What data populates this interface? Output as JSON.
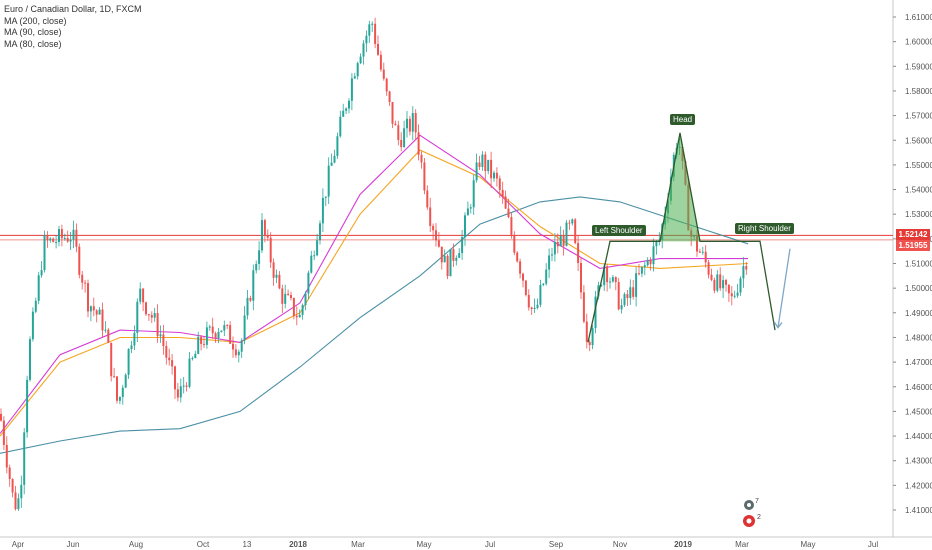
{
  "legend": {
    "symbol": "Euro / Canadian Dollar, 1D, FXCM",
    "ma1": "MA (200, close)",
    "ma2": "MA (90, close)",
    "ma3": "MA (80, close)"
  },
  "price_labels": {
    "upper": "1.52142",
    "lower": "1.51955"
  },
  "annotations": {
    "head": "Head",
    "left_shoulder": "Left Shoulder",
    "right_shoulder": "Right Shoulder"
  },
  "logo_badges": {
    "top": "7",
    "bottom": "2"
  },
  "colors": {
    "up": "#26a69a",
    "down": "#ef5350",
    "ma200": "#4a90a4",
    "ma90": "#f5a623",
    "ma80": "#d63ad6",
    "resistance": "#e53935",
    "pattern": "#2e5a2c",
    "head_fill": "#4caf50",
    "arrow": "#7fa7c9"
  },
  "chart_data": {
    "type": "candlestick",
    "title": "Euro / Canadian Dollar, 1D, FXCM",
    "indicators": [
      "MA (200, close)",
      "MA (90, close)",
      "MA (80, close)"
    ],
    "y_ticks": [
      "1.61000",
      "1.60000",
      "1.59000",
      "1.58000",
      "1.57000",
      "1.56000",
      "1.55000",
      "1.54000",
      "1.53000",
      "1.52000",
      "1.51000",
      "1.50000",
      "1.49000",
      "1.48000",
      "1.47000",
      "1.46000",
      "1.45000",
      "1.44000",
      "1.43000",
      "1.42000",
      "1.41000"
    ],
    "ylim": [
      1.405,
      1.613
    ],
    "x_ticks": [
      "Apr",
      "Jun",
      "Aug",
      "Oct",
      "13",
      "2018",
      "Mar",
      "May",
      "Jul",
      "Sep",
      "Nov",
      "2019",
      "Mar",
      "May",
      "Jul"
    ],
    "close_path": [
      {
        "x": 0,
        "y": 1.449
      },
      {
        "x": 14,
        "y": 1.412
      },
      {
        "x": 20,
        "y": 1.415
      },
      {
        "x": 28,
        "y": 1.472
      },
      {
        "x": 44,
        "y": 1.518
      },
      {
        "x": 60,
        "y": 1.52
      },
      {
        "x": 72,
        "y": 1.522
      },
      {
        "x": 88,
        "y": 1.495
      },
      {
        "x": 104,
        "y": 1.485
      },
      {
        "x": 118,
        "y": 1.452
      },
      {
        "x": 140,
        "y": 1.498
      },
      {
        "x": 160,
        "y": 1.482
      },
      {
        "x": 178,
        "y": 1.455
      },
      {
        "x": 200,
        "y": 1.478
      },
      {
        "x": 220,
        "y": 1.485
      },
      {
        "x": 240,
        "y": 1.475
      },
      {
        "x": 262,
        "y": 1.525
      },
      {
        "x": 280,
        "y": 1.498
      },
      {
        "x": 300,
        "y": 1.488
      },
      {
        "x": 320,
        "y": 1.53
      },
      {
        "x": 340,
        "y": 1.565
      },
      {
        "x": 358,
        "y": 1.595
      },
      {
        "x": 372,
        "y": 1.608
      },
      {
        "x": 384,
        "y": 1.582
      },
      {
        "x": 398,
        "y": 1.56
      },
      {
        "x": 414,
        "y": 1.568
      },
      {
        "x": 430,
        "y": 1.53
      },
      {
        "x": 446,
        "y": 1.508
      },
      {
        "x": 462,
        "y": 1.52
      },
      {
        "x": 480,
        "y": 1.553
      },
      {
        "x": 498,
        "y": 1.542
      },
      {
        "x": 516,
        "y": 1.515
      },
      {
        "x": 534,
        "y": 1.488
      },
      {
        "x": 552,
        "y": 1.515
      },
      {
        "x": 572,
        "y": 1.525
      },
      {
        "x": 588,
        "y": 1.478
      },
      {
        "x": 604,
        "y": 1.51
      },
      {
        "x": 622,
        "y": 1.492
      },
      {
        "x": 640,
        "y": 1.505
      },
      {
        "x": 660,
        "y": 1.52
      },
      {
        "x": 678,
        "y": 1.563
      },
      {
        "x": 690,
        "y": 1.522
      },
      {
        "x": 702,
        "y": 1.513
      },
      {
        "x": 716,
        "y": 1.502
      },
      {
        "x": 732,
        "y": 1.495
      },
      {
        "x": 746,
        "y": 1.512
      }
    ],
    "moving_averages": [
      {
        "name": "MA (200, close)",
        "points": [
          [
            0,
            1.433
          ],
          [
            60,
            1.438
          ],
          [
            120,
            1.442
          ],
          [
            180,
            1.443
          ],
          [
            240,
            1.45
          ],
          [
            300,
            1.468
          ],
          [
            360,
            1.488
          ],
          [
            420,
            1.505
          ],
          [
            480,
            1.526
          ],
          [
            540,
            1.535
          ],
          [
            580,
            1.537
          ],
          [
            620,
            1.535
          ],
          [
            680,
            1.527
          ],
          [
            748,
            1.518
          ]
        ]
      },
      {
        "name": "MA (90, close)",
        "points": [
          [
            0,
            1.44
          ],
          [
            60,
            1.47
          ],
          [
            120,
            1.48
          ],
          [
            180,
            1.48
          ],
          [
            240,
            1.478
          ],
          [
            300,
            1.49
          ],
          [
            360,
            1.53
          ],
          [
            420,
            1.556
          ],
          [
            480,
            1.545
          ],
          [
            540,
            1.525
          ],
          [
            600,
            1.51
          ],
          [
            660,
            1.508
          ],
          [
            748,
            1.51
          ]
        ]
      },
      {
        "name": "MA (80, close)",
        "points": [
          [
            0,
            1.441
          ],
          [
            60,
            1.473
          ],
          [
            120,
            1.483
          ],
          [
            180,
            1.482
          ],
          [
            240,
            1.478
          ],
          [
            300,
            1.494
          ],
          [
            360,
            1.538
          ],
          [
            420,
            1.562
          ],
          [
            480,
            1.546
          ],
          [
            540,
            1.522
          ],
          [
            600,
            1.508
          ],
          [
            660,
            1.512
          ],
          [
            748,
            1.512
          ]
        ]
      }
    ],
    "levels": [
      1.5214,
      1.5196
    ],
    "pattern": {
      "name": "Head and Shoulders",
      "points": [
        [
          588,
          1.478
        ],
        [
          610,
          1.519
        ],
        [
          660,
          1.519
        ],
        [
          680,
          1.563
        ],
        [
          700,
          1.519
        ],
        [
          760,
          1.519
        ],
        [
          775,
          1.483
        ]
      ],
      "arrow": [
        [
          790,
          1.516
        ],
        [
          778,
          1.484
        ]
      ]
    }
  }
}
